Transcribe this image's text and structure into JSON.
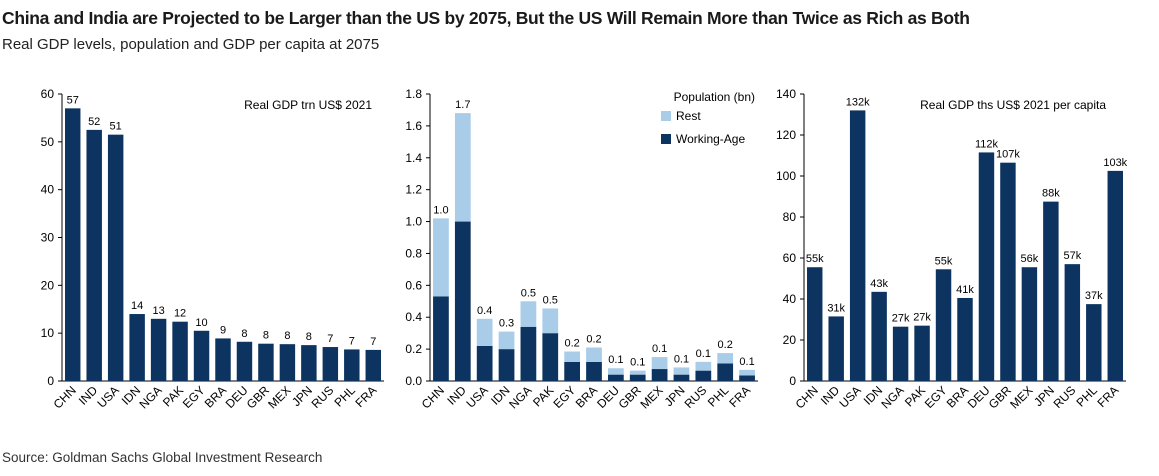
{
  "header": {
    "title": "China and India are Projected to be Larger than the US by 2075, But the US Will Remain More than Twice as Rich as Both",
    "subtitle": "Real GDP levels, population and GDP per capita at 2075"
  },
  "footer": {
    "source": "Source: Goldman Sachs Global Investment Research"
  },
  "colors": {
    "dark": "#0d3460",
    "light": "#a9cce9",
    "axis": "#000000"
  },
  "chart_data": [
    {
      "type": "bar",
      "title": "Real GDP trn US$ 2021",
      "categories": [
        "CHN",
        "IND",
        "USA",
        "IDN",
        "NGA",
        "PAK",
        "EGY",
        "BRA",
        "DEU",
        "GBR",
        "MEX",
        "JPN",
        "RUS",
        "PHL",
        "FRA"
      ],
      "values": [
        57,
        52.5,
        51.5,
        14,
        13,
        12.4,
        10.5,
        8.9,
        8.2,
        7.8,
        7.7,
        7.5,
        7.1,
        6.6,
        6.5
      ],
      "data_labels": [
        "57",
        "52",
        "51",
        "14",
        "13",
        "12",
        "10",
        "9",
        "8",
        "8",
        "8",
        "8",
        "7",
        "7",
        "7"
      ],
      "ylim": [
        0,
        60
      ],
      "yticks": [
        "0",
        "10",
        "20",
        "30",
        "40",
        "50",
        "60"
      ]
    },
    {
      "type": "bar",
      "stacked": true,
      "categories": [
        "CHN",
        "IND",
        "USA",
        "IDN",
        "NGA",
        "PAK",
        "EGY",
        "BRA",
        "DEU",
        "GBR",
        "MEX",
        "JPN",
        "RUS",
        "PHL",
        "FRA"
      ],
      "legend_title": "Population (bn)",
      "legend_position": "top-right",
      "series": [
        {
          "name": "Working-Age",
          "values": [
            0.53,
            1.0,
            0.22,
            0.2,
            0.34,
            0.3,
            0.12,
            0.12,
            0.04,
            0.04,
            0.075,
            0.04,
            0.065,
            0.11,
            0.035
          ]
        },
        {
          "name": "Rest",
          "values": [
            0.49,
            0.68,
            0.17,
            0.11,
            0.16,
            0.155,
            0.065,
            0.09,
            0.04,
            0.025,
            0.075,
            0.045,
            0.055,
            0.065,
            0.035
          ]
        }
      ],
      "data_labels": [
        "1.0",
        "1.7",
        "0.4",
        "0.3",
        "0.5",
        "0.5",
        "0.2",
        "0.2",
        "0.1",
        "0.1",
        "0.1",
        "0.1",
        "0.1",
        "0.2",
        "0.1"
      ],
      "ylim": [
        0,
        1.8
      ],
      "yticks": [
        "0.0",
        "0.2",
        "0.4",
        "0.6",
        "0.8",
        "1.0",
        "1.2",
        "1.4",
        "1.6",
        "1.8"
      ]
    },
    {
      "type": "bar",
      "title": "Real GDP ths US$ 2021 per capita",
      "categories": [
        "CHN",
        "IND",
        "USA",
        "IDN",
        "NGA",
        "PAK",
        "EGY",
        "BRA",
        "DEU",
        "GBR",
        "MEX",
        "JPN",
        "RUS",
        "PHL",
        "FRA"
      ],
      "values": [
        55.5,
        31.5,
        132,
        43.5,
        26.5,
        27,
        54.5,
        40.5,
        111.5,
        106.5,
        55.5,
        87.5,
        57,
        37.5,
        102.5
      ],
      "data_labels": [
        "55k",
        "31k",
        "132k",
        "43k",
        "27k",
        "27k",
        "55k",
        "41k",
        "112k",
        "107k",
        "56k",
        "88k",
        "57k",
        "37k",
        "103k"
      ],
      "ylim": [
        0,
        140
      ],
      "yticks": [
        "0",
        "20",
        "40",
        "60",
        "80",
        "100",
        "120",
        "140"
      ]
    }
  ]
}
